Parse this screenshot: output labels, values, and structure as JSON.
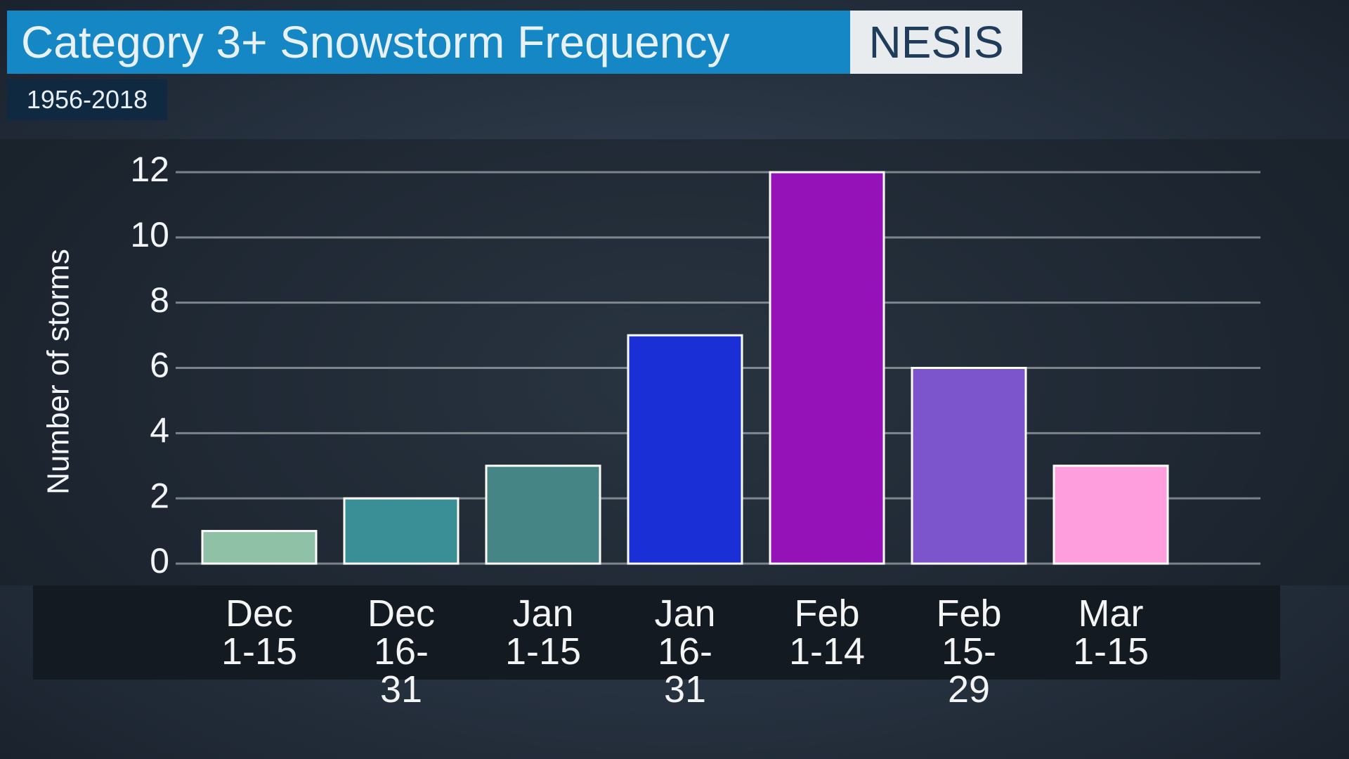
{
  "chart_data": {
    "type": "bar",
    "title": "Category 3+ Snowstorm Frequency",
    "badge": "NESIS",
    "subtitle": "1956-2018",
    "y_label": "Number of storms",
    "categories": [
      "Dec 1-15",
      "Dec 16-31",
      "Jan 1-15",
      "Jan 16-31",
      "Feb 1-14",
      "Feb 15-29",
      "Mar 1-15"
    ],
    "values": [
      1,
      2,
      3,
      7,
      12,
      6,
      3
    ],
    "colors": [
      "#8fc1a6",
      "#3a8f96",
      "#468585",
      "#1a2fd6",
      "#9412b8",
      "#7c55cc",
      "#ff9edc"
    ],
    "ylim": [
      0,
      12
    ],
    "yticks": [
      0,
      2,
      4,
      6,
      8,
      10,
      12
    ],
    "grid": true
  }
}
